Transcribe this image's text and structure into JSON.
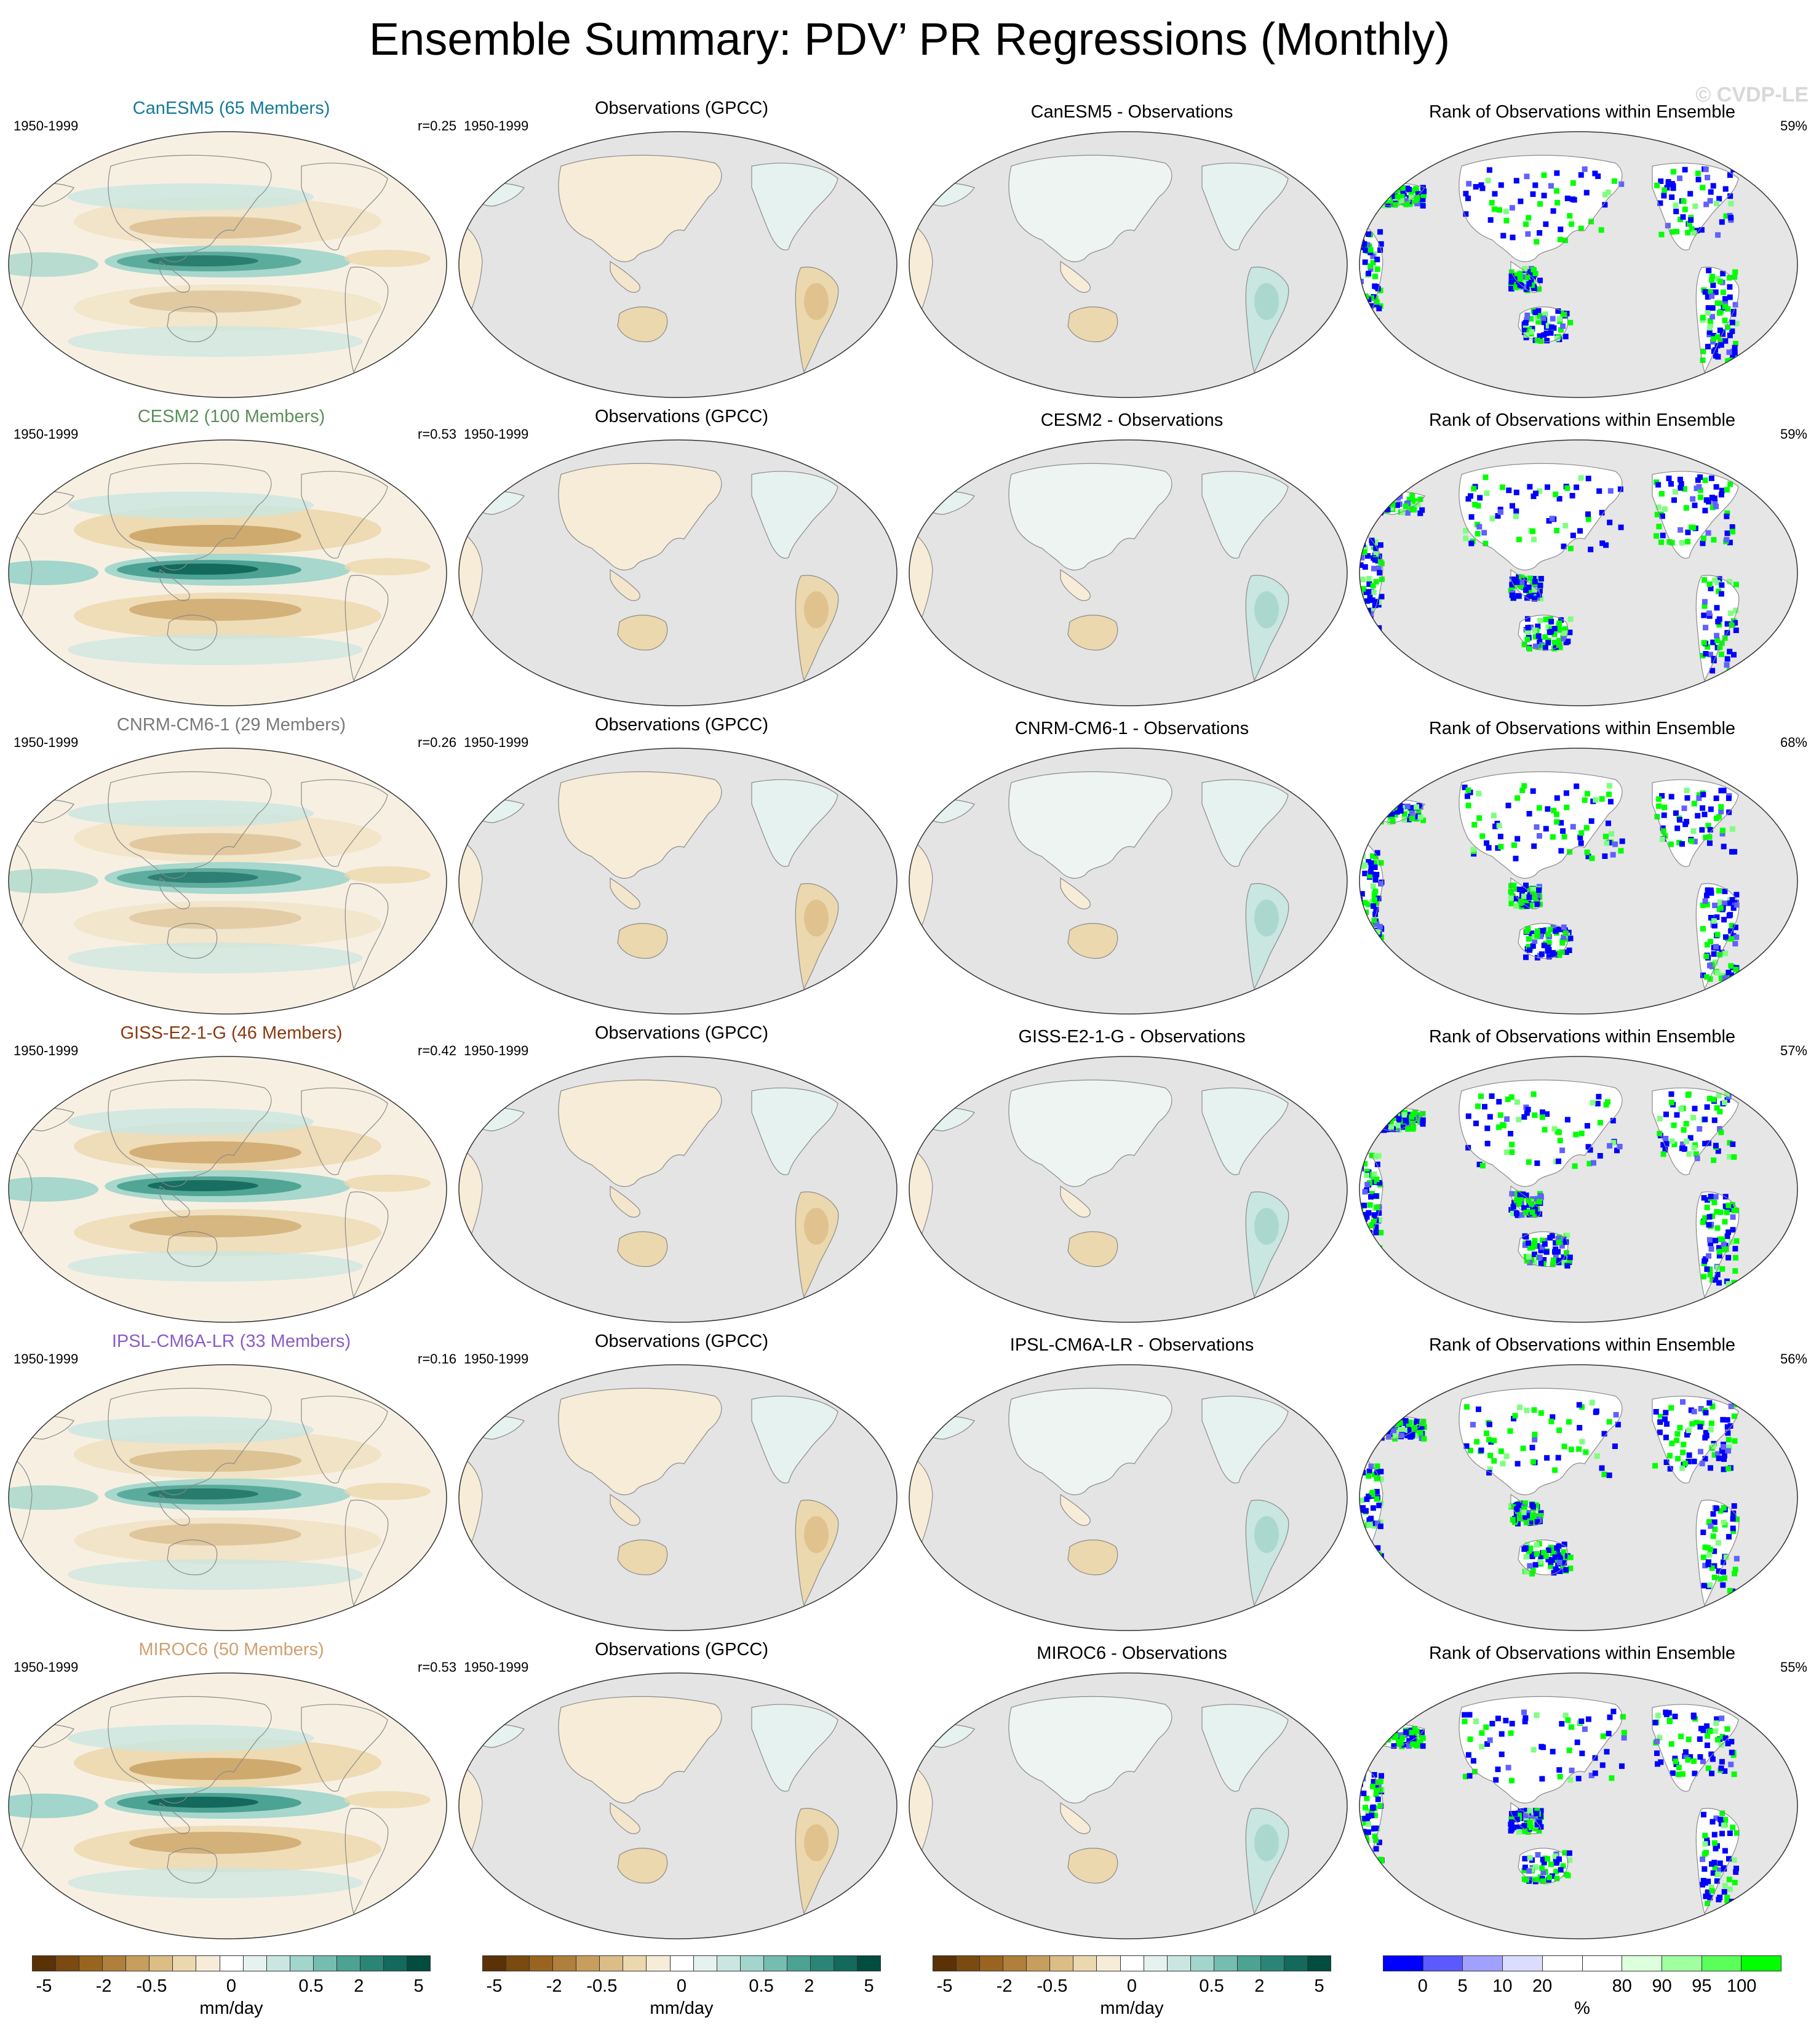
{
  "title": "Ensemble Summary: PDV’ PR Regressions (Monthly)",
  "watermark": "© CVDP-LE",
  "rows": [
    {
      "model": "CanESM5 (65 Members)",
      "model_color": "#16799a",
      "years": "1950-1999",
      "r": "r=0.25",
      "obs_title": "Observations (GPCC)",
      "obs_years": "1950-1999",
      "diff_title": "CanESM5 - Observations",
      "rank_title": "Rank of Observations within Ensemble",
      "rank_pct": "59%"
    },
    {
      "model": "CESM2 (100 Members)",
      "model_color": "#5a8f5a",
      "years": "1950-1999",
      "r": "r=0.53",
      "obs_title": "Observations (GPCC)",
      "obs_years": "1950-1999",
      "diff_title": "CESM2 - Observations",
      "rank_title": "Rank of Observations within Ensemble",
      "rank_pct": "59%"
    },
    {
      "model": "CNRM-CM6-1 (29 Members)",
      "model_color": "#7a7a7a",
      "years": "1950-1999",
      "r": "r=0.26",
      "obs_title": "Observations (GPCC)",
      "obs_years": "1950-1999",
      "diff_title": "CNRM-CM6-1 - Observations",
      "rank_title": "Rank of Observations within Ensemble",
      "rank_pct": "68%"
    },
    {
      "model": "GISS-E2-1-G (46 Members)",
      "model_color": "#8a3a10",
      "years": "1950-1999",
      "r": "r=0.42",
      "obs_title": "Observations (GPCC)",
      "obs_years": "1950-1999",
      "diff_title": "GISS-E2-1-G - Observations",
      "rank_title": "Rank of Observations within Ensemble",
      "rank_pct": "57%"
    },
    {
      "model": "IPSL-CM6A-LR (33 Members)",
      "model_color": "#8a5cc8",
      "years": "1950-1999",
      "r": "r=0.16",
      "obs_title": "Observations (GPCC)",
      "obs_years": "1950-1999",
      "diff_title": "IPSL-CM6A-LR - Observations",
      "rank_title": "Rank of Observations within Ensemble",
      "rank_pct": "56%"
    },
    {
      "model": "MIROC6 (50 Members)",
      "model_color": "#d0a070",
      "years": "1950-1999",
      "r": "r=0.53",
      "obs_title": "Observations (GPCC)",
      "obs_years": "1950-1999",
      "diff_title": "MIROC6 - Observations",
      "rank_title": "Rank of Observations within Ensemble",
      "rank_pct": "55%"
    }
  ],
  "colorbars": [
    {
      "colors": [
        "#5a3206",
        "#7a4a10",
        "#986420",
        "#b07f3c",
        "#c79e5e",
        "#dcbd86",
        "#ecd8ae",
        "#f6ecd8",
        "#ffffff",
        "#e6f2f0",
        "#c9e6e1",
        "#a2d5cb",
        "#74bdb0",
        "#4ca293",
        "#2b8577",
        "#13695c",
        "#034c40"
      ],
      "ticks": [
        "-5",
        "-2",
        "-0.5",
        "0",
        "0.5",
        "2",
        "5"
      ],
      "unit": "mm/day"
    },
    {
      "colors": [
        "#5a3206",
        "#7a4a10",
        "#986420",
        "#b07f3c",
        "#c79e5e",
        "#dcbd86",
        "#ecd8ae",
        "#f6ecd8",
        "#ffffff",
        "#e6f2f0",
        "#c9e6e1",
        "#a2d5cb",
        "#74bdb0",
        "#4ca293",
        "#2b8577",
        "#13695c",
        "#034c40"
      ],
      "ticks": [
        "-5",
        "-2",
        "-0.5",
        "0",
        "0.5",
        "2",
        "5"
      ],
      "unit": "mm/day"
    },
    {
      "colors": [
        "#5a3206",
        "#7a4a10",
        "#986420",
        "#b07f3c",
        "#c79e5e",
        "#dcbd86",
        "#ecd8ae",
        "#f6ecd8",
        "#ffffff",
        "#e6f2f0",
        "#c9e6e1",
        "#a2d5cb",
        "#74bdb0",
        "#4ca293",
        "#2b8577",
        "#13695c",
        "#034c40"
      ],
      "ticks": [
        "-5",
        "-2",
        "-0.5",
        "0",
        "0.5",
        "2",
        "5"
      ],
      "unit": "mm/day"
    },
    {
      "colors": [
        "#0000ff",
        "#5a5aff",
        "#a0a0ff",
        "#dcdcff",
        "#ffffff",
        "#ffffff",
        "#dcffdc",
        "#a0ffa0",
        "#5aff5a",
        "#00ff00"
      ],
      "ticks": [
        "0",
        "5",
        "10",
        "20",
        "80",
        "90",
        "95",
        "100"
      ],
      "unit": "%"
    }
  ]
}
